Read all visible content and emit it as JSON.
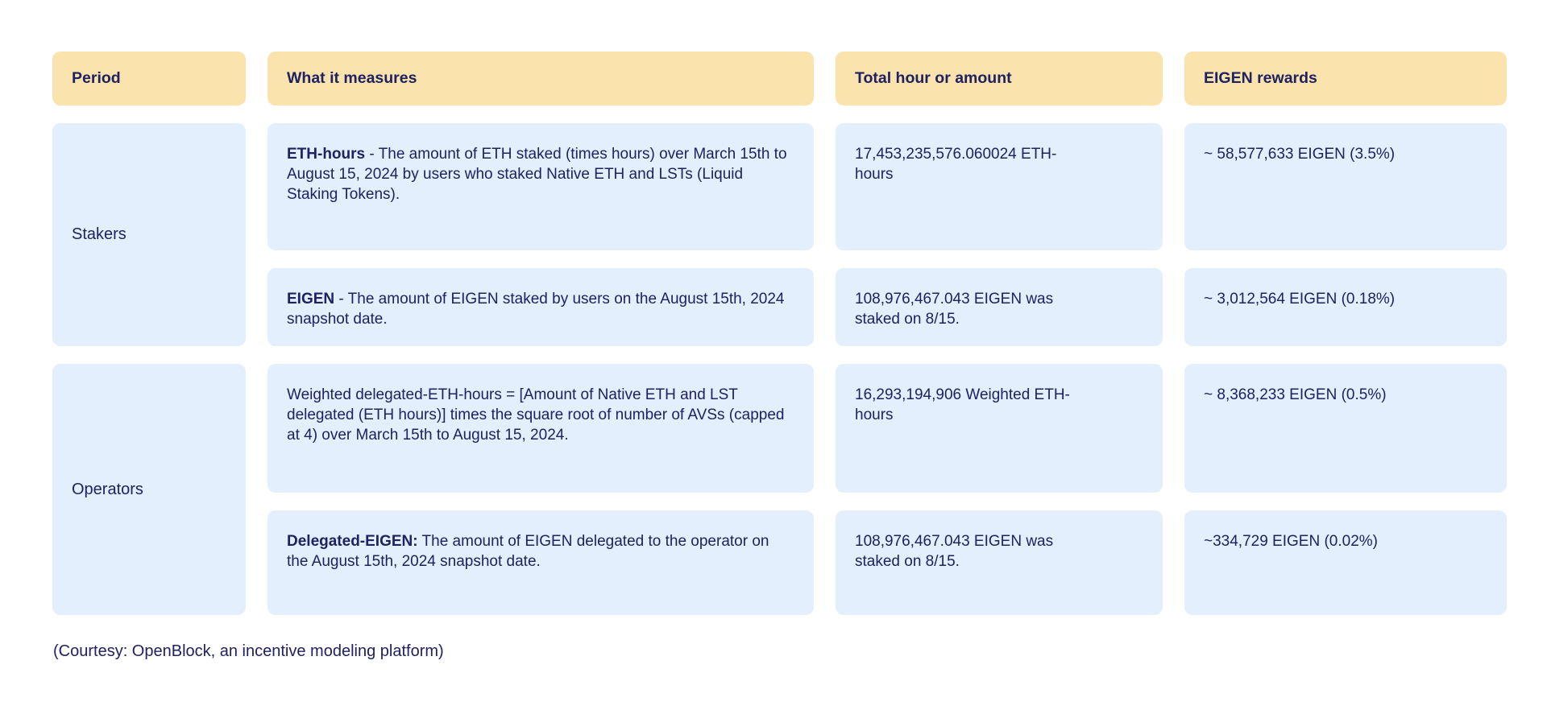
{
  "colors": {
    "header_bg": "#FAE3AC",
    "cell_bg": "#E3EFFC",
    "text": "#1F2161",
    "page_bg": "#FFFFFF"
  },
  "table": {
    "headers": [
      "Period",
      "What it measures",
      "Total hour or amount",
      "EIGEN rewards"
    ],
    "groups": [
      {
        "period": "Stakers",
        "rows": [
          {
            "measure_bold": "ETH-hours",
            "measure_rest": " -  The amount of ETH staked (times hours) over March 15th to August 15, 2024  by users who staked Native ETH and LSTs (Liquid Staking Tokens).",
            "total": "17,453,235,576.060024 ETH-hours",
            "rewards": "~ 58,577,633 EIGEN (3.5%)"
          },
          {
            "measure_bold": "EIGEN",
            "measure_rest": " - The amount of EIGEN staked by users on the August 15th, 2024 snapshot date.",
            "total": "108,976,467.043 EIGEN was staked on 8/15.",
            "rewards": "~ 3,012,564 EIGEN  (0.18%)"
          }
        ]
      },
      {
        "period": "Operators",
        "rows": [
          {
            "measure_bold": "",
            "measure_rest": "Weighted delegated-ETH-hours = [Amount of Native ETH and LST delegated (ETH hours)] times the square root of number of  AVSs (capped at 4) over March 15th to August 15, 2024.",
            "total": "16,293,194,906 Weighted ETH-hours",
            "rewards": "~ 8,368,233 EIGEN (0.5%)"
          },
          {
            "measure_bold": "Delegated-EIGEN:",
            "measure_rest": " The amount of EIGEN delegated to the operator on the August 15th, 2024 snapshot date.",
            "total": "108,976,467.043 EIGEN was staked on 8/15.",
            "rewards": "~334,729 EIGEN (0.02%)"
          }
        ]
      }
    ]
  },
  "caption": "(Courtesy: OpenBlock, an incentive modeling platform)",
  "chart_data": {
    "type": "table",
    "title": "",
    "columns": [
      "Period",
      "What it measures",
      "Total hour or amount",
      "EIGEN rewards"
    ],
    "rows": [
      [
        "Stakers",
        "ETH-hours - The amount of ETH staked (times hours) over March 15th to August 15, 2024 by users who staked Native ETH and LSTs (Liquid Staking Tokens).",
        "17,453,235,576.060024 ETH-hours",
        "~ 58,577,633 EIGEN (3.5%)"
      ],
      [
        "Stakers",
        "EIGEN - The amount of EIGEN staked by users on the August 15th, 2024 snapshot date.",
        "108,976,467.043 EIGEN was staked on 8/15.",
        "~ 3,012,564 EIGEN (0.18%)"
      ],
      [
        "Operators",
        "Weighted delegated-ETH-hours = [Amount of Native ETH and LST delegated (ETH hours)] times the square root of number of AVSs (capped at 4) over March 15th to August 15, 2024.",
        "16,293,194,906 Weighted ETH-hours",
        "~ 8,368,233 EIGEN (0.5%)"
      ],
      [
        "Operators",
        "Delegated-EIGEN: The amount of EIGEN delegated to the operator on the August 15th, 2024 snapshot date.",
        "108,976,467.043 EIGEN was staked on 8/15.",
        "~334,729 EIGEN (0.02%)"
      ]
    ],
    "caption": "(Courtesy: OpenBlock, an incentive modeling platform)"
  }
}
